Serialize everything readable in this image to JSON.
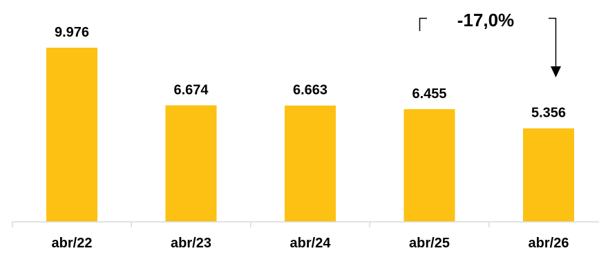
{
  "chart_data": {
    "type": "bar",
    "categories": [
      "abr/22",
      "abr/23",
      "abr/24",
      "abr/25",
      "abr/26"
    ],
    "values": [
      9976,
      6674,
      6663,
      6455,
      5356
    ],
    "value_labels": [
      "9.976",
      "6.674",
      "6.663",
      "6.455",
      "5.356"
    ],
    "title": "",
    "xlabel": "",
    "ylabel": "",
    "ylim": [
      0,
      12000
    ],
    "grid": false,
    "legend": "none",
    "annotation": {
      "text": "-17,0%",
      "from_category": "abr/25",
      "to_category": "abr/26"
    },
    "colors": {
      "bar": "#FDC113",
      "text": "#000000",
      "axis": "#d9d9d9"
    }
  }
}
